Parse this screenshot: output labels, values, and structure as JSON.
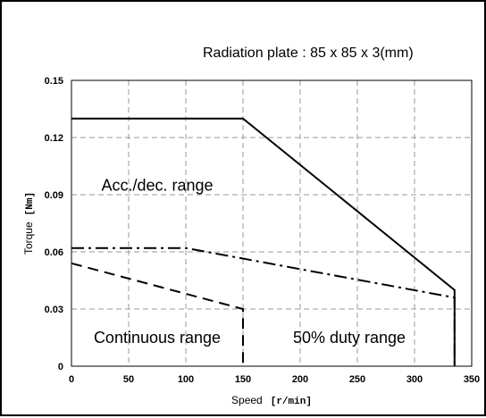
{
  "chart_data": {
    "type": "line",
    "annotation": "Radiation plate : 85 x 85 x 3(mm)",
    "xlabel": "Speed",
    "xunit": "[r/min]",
    "ylabel": "Torque",
    "yunit": "[Nm]",
    "xlim": [
      0,
      350
    ],
    "ylim": [
      0,
      0.15
    ],
    "xticks": [
      0,
      50,
      100,
      150,
      200,
      250,
      300,
      350
    ],
    "yticks": [
      0,
      0.03,
      0.06,
      0.09,
      0.12,
      0.15
    ],
    "ytick_labels": [
      "0",
      "0.03",
      "0.06",
      "0.09",
      "0.12",
      "0.15"
    ],
    "grid": true,
    "series": [
      {
        "style": "solid",
        "points": [
          [
            0,
            0.13
          ],
          [
            150,
            0.13
          ],
          [
            335,
            0.04
          ],
          [
            335,
            0
          ]
        ]
      },
      {
        "style": "dashdot",
        "points": [
          [
            0,
            0.062
          ],
          [
            100,
            0.062
          ],
          [
            335,
            0.036
          ],
          [
            335,
            0
          ]
        ]
      },
      {
        "style": "dashed",
        "points": [
          [
            0,
            0.054
          ],
          [
            150,
            0.03
          ],
          [
            150,
            0
          ]
        ]
      }
    ],
    "region_labels": [
      {
        "text": "Acc./dec. range",
        "x": 75,
        "y": 0.095
      },
      {
        "text": "Continuous range",
        "x": 75,
        "y": 0.015
      },
      {
        "text": "50% duty range",
        "x": 243,
        "y": 0.015
      }
    ]
  }
}
